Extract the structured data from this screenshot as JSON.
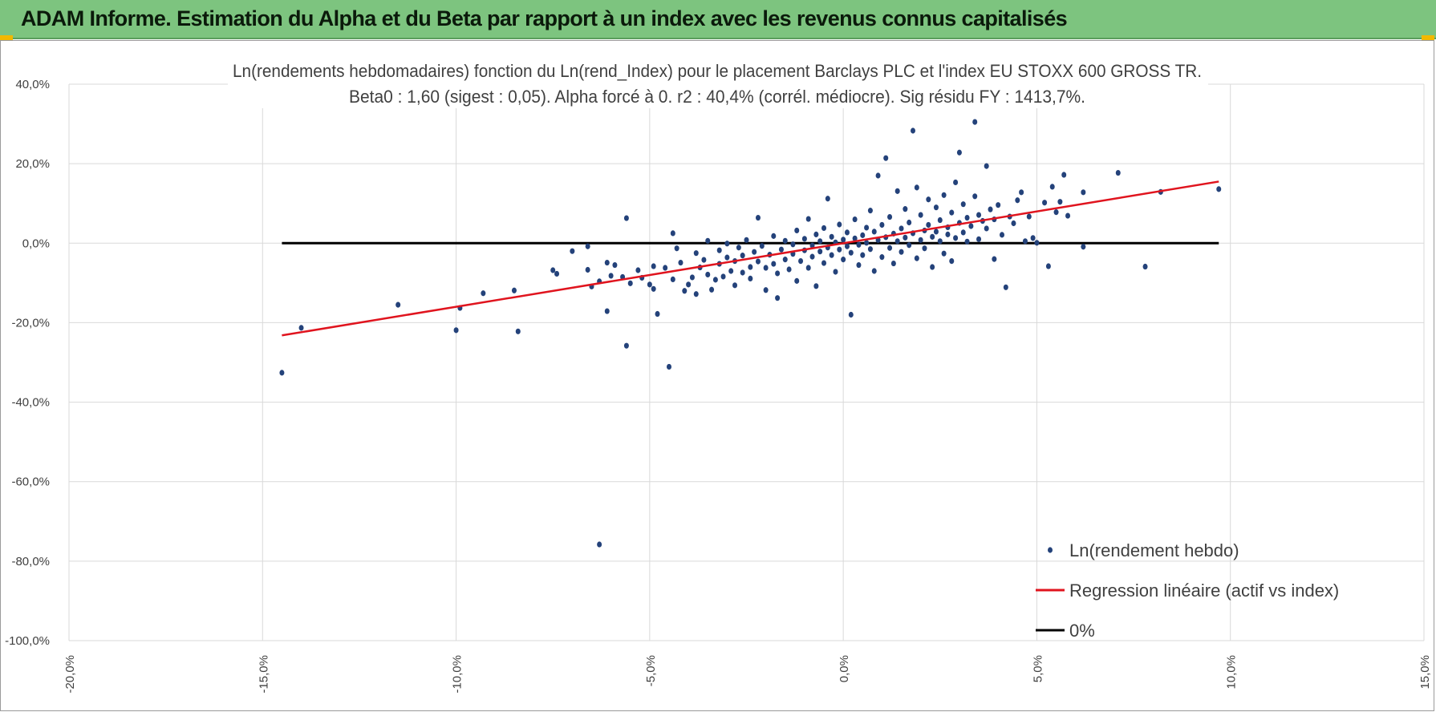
{
  "header": {
    "title": "ADAM Informe. Estimation du Alpha et du Beta par rapport à un index avec les revenus connus capitalisés",
    "accent_color": "#7dc47f"
  },
  "chart_data": {
    "type": "scatter",
    "title": "Ln(rendements hebdomadaires) fonction du Ln(rend_Index) pour le placement Barclays PLC et l'index EU STOXX 600 GROSS TR.",
    "subtitle": "Beta0 : 1,60 (sigest : 0,05). Alpha forcé à 0. r2 : 40,4% (corrél. médiocre). Sig résidu FY : 1413,7%.",
    "xlabel": "",
    "ylabel": "",
    "xlim": [
      -0.2,
      0.15
    ],
    "ylim": [
      -1.0,
      0.4
    ],
    "x_ticks": [
      -0.2,
      -0.15,
      -0.1,
      -0.05,
      0.0,
      0.05,
      0.1,
      0.15
    ],
    "x_tick_labels": [
      "-20,0%",
      "-15,0%",
      "-10,0%",
      "-5,0%",
      "0,0%",
      "5,0%",
      "10,0%",
      "15,0%"
    ],
    "y_ticks": [
      0.4,
      0.2,
      0.0,
      -0.2,
      -0.4,
      -0.6,
      -0.8,
      -1.0
    ],
    "y_tick_labels": [
      "40,0%",
      "20,0%",
      "0,0%",
      "-20,0%",
      "-40,0%",
      "-60,0%",
      "-80,0%",
      "-100,0%"
    ],
    "grid": true,
    "legend_position": "bottom-right",
    "series": [
      {
        "name": "Ln(rendement hebdo)",
        "kind": "scatter",
        "color": "#24427a",
        "points": [
          [
            -0.145,
            -0.326
          ],
          [
            -0.14,
            -0.213
          ],
          [
            -0.115,
            -0.155
          ],
          [
            -0.1,
            -0.219
          ],
          [
            -0.099,
            -0.163
          ],
          [
            -0.093,
            -0.126
          ],
          [
            -0.085,
            -0.119
          ],
          [
            -0.084,
            -0.222
          ],
          [
            -0.075,
            -0.068
          ],
          [
            -0.074,
            -0.077
          ],
          [
            -0.07,
            -0.02
          ],
          [
            -0.066,
            -0.008
          ],
          [
            -0.066,
            -0.067
          ],
          [
            -0.065,
            -0.109
          ],
          [
            -0.063,
            -0.758
          ],
          [
            -0.063,
            -0.096
          ],
          [
            -0.061,
            -0.049
          ],
          [
            -0.061,
            -0.171
          ],
          [
            -0.06,
            -0.082
          ],
          [
            -0.059,
            -0.055
          ],
          [
            -0.057,
            -0.085
          ],
          [
            -0.056,
            -0.258
          ],
          [
            -0.056,
            0.063
          ],
          [
            -0.055,
            -0.101
          ],
          [
            -0.053,
            -0.068
          ],
          [
            -0.052,
            -0.087
          ],
          [
            -0.05,
            -0.104
          ],
          [
            -0.049,
            -0.115
          ],
          [
            -0.049,
            -0.058
          ],
          [
            -0.048,
            -0.178
          ],
          [
            -0.046,
            -0.062
          ],
          [
            -0.045,
            -0.311
          ],
          [
            -0.044,
            -0.091
          ],
          [
            -0.044,
            0.025
          ],
          [
            -0.043,
            -0.013
          ],
          [
            -0.042,
            -0.049
          ],
          [
            -0.041,
            -0.12
          ],
          [
            -0.04,
            -0.104
          ],
          [
            -0.039,
            -0.086
          ],
          [
            -0.038,
            -0.128
          ],
          [
            -0.038,
            -0.025
          ],
          [
            -0.037,
            -0.061
          ],
          [
            -0.036,
            -0.042
          ],
          [
            -0.035,
            -0.079
          ],
          [
            -0.035,
            0.006
          ],
          [
            -0.034,
            -0.117
          ],
          [
            -0.033,
            -0.092
          ],
          [
            -0.032,
            -0.052
          ],
          [
            -0.032,
            -0.018
          ],
          [
            -0.031,
            -0.084
          ],
          [
            -0.03,
            -0.036
          ],
          [
            -0.03,
            -0.001
          ],
          [
            -0.029,
            -0.07
          ],
          [
            -0.028,
            -0.106
          ],
          [
            -0.028,
            -0.045
          ],
          [
            -0.027,
            -0.011
          ],
          [
            -0.026,
            -0.074
          ],
          [
            -0.026,
            -0.031
          ],
          [
            -0.025,
            0.008
          ],
          [
            -0.024,
            -0.06
          ],
          [
            -0.024,
            -0.089
          ],
          [
            -0.023,
            -0.022
          ],
          [
            -0.022,
            -0.046
          ],
          [
            -0.022,
            0.064
          ],
          [
            -0.021,
            -0.007
          ],
          [
            -0.02,
            -0.118
          ],
          [
            -0.02,
            -0.062
          ],
          [
            -0.019,
            -0.029
          ],
          [
            -0.018,
            -0.052
          ],
          [
            -0.018,
            0.018
          ],
          [
            -0.017,
            -0.138
          ],
          [
            -0.017,
            -0.076
          ],
          [
            -0.016,
            -0.016
          ],
          [
            -0.015,
            -0.041
          ],
          [
            -0.015,
            0.006
          ],
          [
            -0.014,
            -0.066
          ],
          [
            -0.013,
            -0.003
          ],
          [
            -0.013,
            -0.027
          ],
          [
            -0.012,
            -0.095
          ],
          [
            -0.012,
            0.032
          ],
          [
            -0.011,
            -0.045
          ],
          [
            -0.01,
            -0.018
          ],
          [
            -0.01,
            0.011
          ],
          [
            -0.009,
            -0.062
          ],
          [
            -0.009,
            0.061
          ],
          [
            -0.008,
            -0.006
          ],
          [
            -0.008,
            -0.034
          ],
          [
            -0.007,
            0.022
          ],
          [
            -0.007,
            -0.108
          ],
          [
            -0.006,
            -0.021
          ],
          [
            -0.006,
            0.005
          ],
          [
            -0.005,
            -0.05
          ],
          [
            -0.005,
            0.038
          ],
          [
            -0.004,
            -0.011
          ],
          [
            -0.004,
            0.112
          ],
          [
            -0.003,
            -0.03
          ],
          [
            -0.003,
            0.016
          ],
          [
            -0.002,
            -0.072
          ],
          [
            -0.002,
            0.002
          ],
          [
            -0.001,
            -0.016
          ],
          [
            -0.001,
            0.047
          ],
          [
            0.0,
            -0.041
          ],
          [
            0.0,
            0.009
          ],
          [
            0.001,
            -0.008
          ],
          [
            0.001,
            0.027
          ],
          [
            0.002,
            -0.18
          ],
          [
            0.002,
            -0.024
          ],
          [
            0.003,
            0.012
          ],
          [
            0.003,
            0.06
          ],
          [
            0.004,
            -0.055
          ],
          [
            0.004,
            -0.004
          ],
          [
            0.005,
            0.02
          ],
          [
            0.005,
            -0.03
          ],
          [
            0.006,
            0.039
          ],
          [
            0.006,
            0.001
          ],
          [
            0.007,
            -0.015
          ],
          [
            0.007,
            0.082
          ],
          [
            0.008,
            0.029
          ],
          [
            0.008,
            -0.07
          ],
          [
            0.009,
            0.008
          ],
          [
            0.009,
            0.17
          ],
          [
            0.01,
            -0.035
          ],
          [
            0.01,
            0.046
          ],
          [
            0.011,
            0.015
          ],
          [
            0.011,
            0.214
          ],
          [
            0.012,
            -0.012
          ],
          [
            0.012,
            0.066
          ],
          [
            0.013,
            0.024
          ],
          [
            0.013,
            -0.051
          ],
          [
            0.014,
            0.005
          ],
          [
            0.014,
            0.131
          ],
          [
            0.015,
            0.037
          ],
          [
            0.015,
            -0.022
          ],
          [
            0.016,
            0.086
          ],
          [
            0.016,
            0.014
          ],
          [
            0.017,
            -0.005
          ],
          [
            0.017,
            0.052
          ],
          [
            0.018,
            0.283
          ],
          [
            0.018,
            0.025
          ],
          [
            0.019,
            0.14
          ],
          [
            0.019,
            -0.038
          ],
          [
            0.02,
            0.008
          ],
          [
            0.02,
            0.071
          ],
          [
            0.021,
            0.032
          ],
          [
            0.021,
            -0.013
          ],
          [
            0.022,
            0.11
          ],
          [
            0.022,
            0.046
          ],
          [
            0.023,
            0.016
          ],
          [
            0.023,
            -0.06
          ],
          [
            0.024,
            0.09
          ],
          [
            0.024,
            0.029
          ],
          [
            0.025,
            0.005
          ],
          [
            0.025,
            0.058
          ],
          [
            0.026,
            0.121
          ],
          [
            0.026,
            -0.026
          ],
          [
            0.027,
            0.04
          ],
          [
            0.027,
            0.022
          ],
          [
            0.028,
            0.077
          ],
          [
            0.028,
            -0.045
          ],
          [
            0.029,
            0.013
          ],
          [
            0.029,
            0.153
          ],
          [
            0.03,
            0.051
          ],
          [
            0.03,
            0.228
          ],
          [
            0.031,
            0.098
          ],
          [
            0.031,
            0.027
          ],
          [
            0.032,
            0.004
          ],
          [
            0.032,
            0.064
          ],
          [
            0.033,
            0.043
          ],
          [
            0.034,
            0.305
          ],
          [
            0.034,
            0.118
          ],
          [
            0.035,
            0.01
          ],
          [
            0.035,
            0.071
          ],
          [
            0.036,
            0.056
          ],
          [
            0.037,
            0.194
          ],
          [
            0.037,
            0.037
          ],
          [
            0.038,
            0.085
          ],
          [
            0.039,
            -0.04
          ],
          [
            0.039,
            0.06
          ],
          [
            0.04,
            0.096
          ],
          [
            0.041,
            0.021
          ],
          [
            0.042,
            -0.111
          ],
          [
            0.043,
            0.067
          ],
          [
            0.044,
            0.05
          ],
          [
            0.045,
            0.108
          ],
          [
            0.046,
            0.128
          ],
          [
            0.047,
            0.005
          ],
          [
            0.048,
            0.067
          ],
          [
            0.049,
            0.013
          ],
          [
            0.05,
            0.001
          ],
          [
            0.052,
            0.102
          ],
          [
            0.053,
            -0.058
          ],
          [
            0.054,
            0.142
          ],
          [
            0.055,
            0.078
          ],
          [
            0.056,
            0.104
          ],
          [
            0.057,
            0.172
          ],
          [
            0.058,
            0.069
          ],
          [
            0.062,
            0.128
          ],
          [
            0.062,
            -0.009
          ],
          [
            0.071,
            0.177
          ],
          [
            0.078,
            -0.059
          ],
          [
            0.082,
            0.129
          ],
          [
            0.097,
            0.136
          ]
        ]
      },
      {
        "name": "Regression linéaire (actif vs index)",
        "kind": "line",
        "color": "#e0141e",
        "points": [
          [
            -0.145,
            -0.232
          ],
          [
            0.097,
            0.155
          ]
        ]
      },
      {
        "name": "0%",
        "kind": "line",
        "color": "#000000",
        "points": [
          [
            -0.145,
            0.0
          ],
          [
            0.097,
            0.0
          ]
        ]
      }
    ]
  }
}
